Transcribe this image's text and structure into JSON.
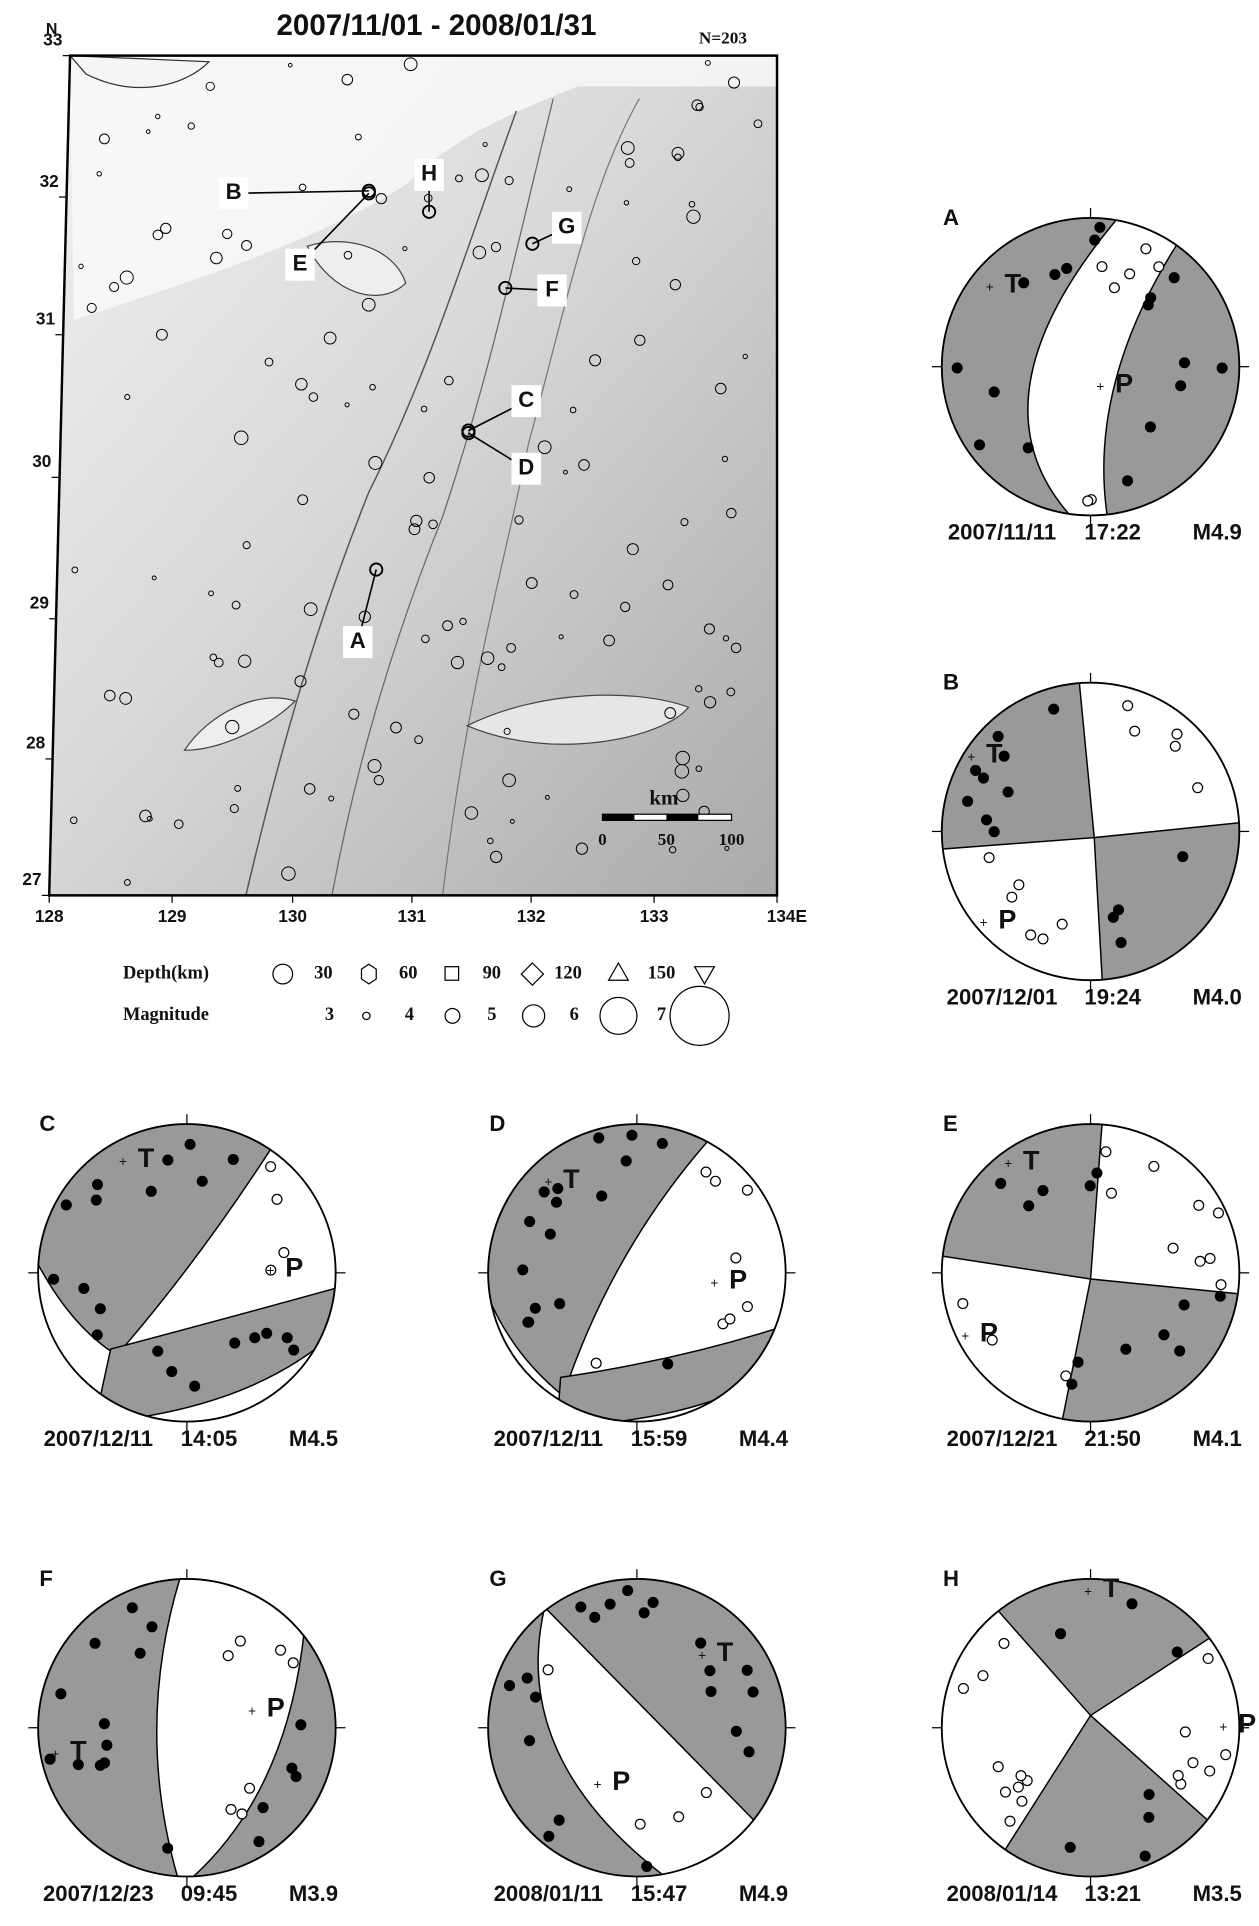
{
  "map": {
    "title": "2007/11/01 - 2008/01/31",
    "count": "N=203",
    "north": "N",
    "lat_ticks": [
      33,
      32,
      31,
      30,
      29,
      28,
      27
    ],
    "lon_ticks": [
      128,
      129,
      130,
      131,
      132,
      133,
      "134E"
    ],
    "events": [
      "A",
      "B",
      "C",
      "D",
      "E",
      "F",
      "G",
      "H"
    ],
    "scale": {
      "unit": "km",
      "ticks": [
        0,
        50,
        100
      ]
    }
  },
  "legend": {
    "depth_label": "Depth(km)",
    "depths": [
      30,
      60,
      90,
      120,
      150
    ],
    "magnitude_label": "Magnitude",
    "magnitudes": [
      3,
      4,
      5,
      6,
      7
    ]
  },
  "mechanisms": [
    {
      "id": "A",
      "date": "2007/11/11",
      "time": "17:22",
      "magnitude": "M4.9",
      "t": "T",
      "p": "P"
    },
    {
      "id": "B",
      "date": "2007/12/01",
      "time": "19:24",
      "magnitude": "M4.0",
      "t": "T",
      "p": "P"
    },
    {
      "id": "C",
      "date": "2007/12/11",
      "time": "14:05",
      "magnitude": "M4.5",
      "t": "T",
      "p": "P"
    },
    {
      "id": "D",
      "date": "2007/12/11",
      "time": "15:59",
      "magnitude": "M4.4",
      "t": "T",
      "p": "P"
    },
    {
      "id": "E",
      "date": "2007/12/21",
      "time": "21:50",
      "magnitude": "M4.1",
      "t": "T",
      "p": "P"
    },
    {
      "id": "F",
      "date": "2007/12/23",
      "time": "09:45",
      "magnitude": "M3.9",
      "t": "T",
      "p": "P"
    },
    {
      "id": "G",
      "date": "2008/01/11",
      "time": "15:47",
      "magnitude": "M4.9",
      "t": "T",
      "p": "P"
    },
    {
      "id": "H",
      "date": "2008/01/14",
      "time": "13:21",
      "magnitude": "M3.5",
      "t": "T",
      "p": "P"
    }
  ]
}
